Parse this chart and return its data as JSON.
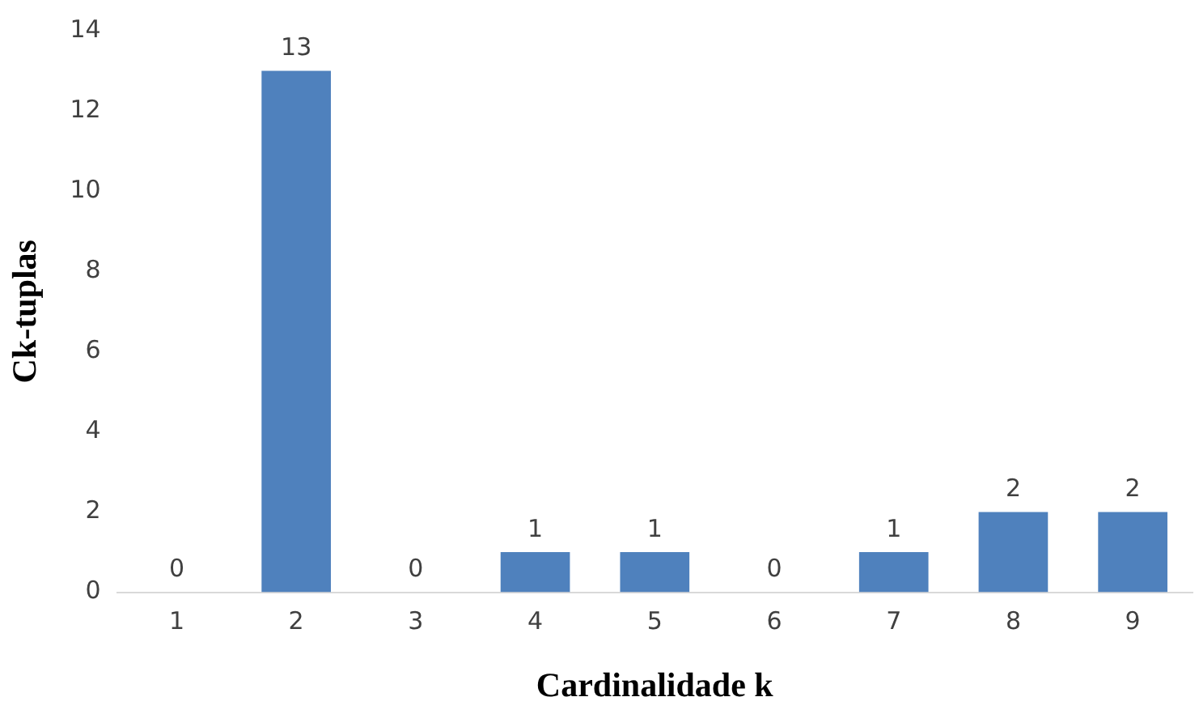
{
  "chart_data": {
    "type": "bar",
    "xlabel": "Cardinalidade k",
    "ylabel": "Ck-tuplas",
    "categories": [
      "1",
      "2",
      "3",
      "4",
      "5",
      "6",
      "7",
      "8",
      "9"
    ],
    "values": [
      0,
      13,
      0,
      1,
      1,
      0,
      1,
      2,
      2
    ],
    "color": "#4f81bd",
    "ylim": [
      0,
      14
    ],
    "yticks": [
      0,
      2,
      4,
      6,
      8,
      10,
      12,
      14
    ],
    "grid": false,
    "data_labels": true
  }
}
